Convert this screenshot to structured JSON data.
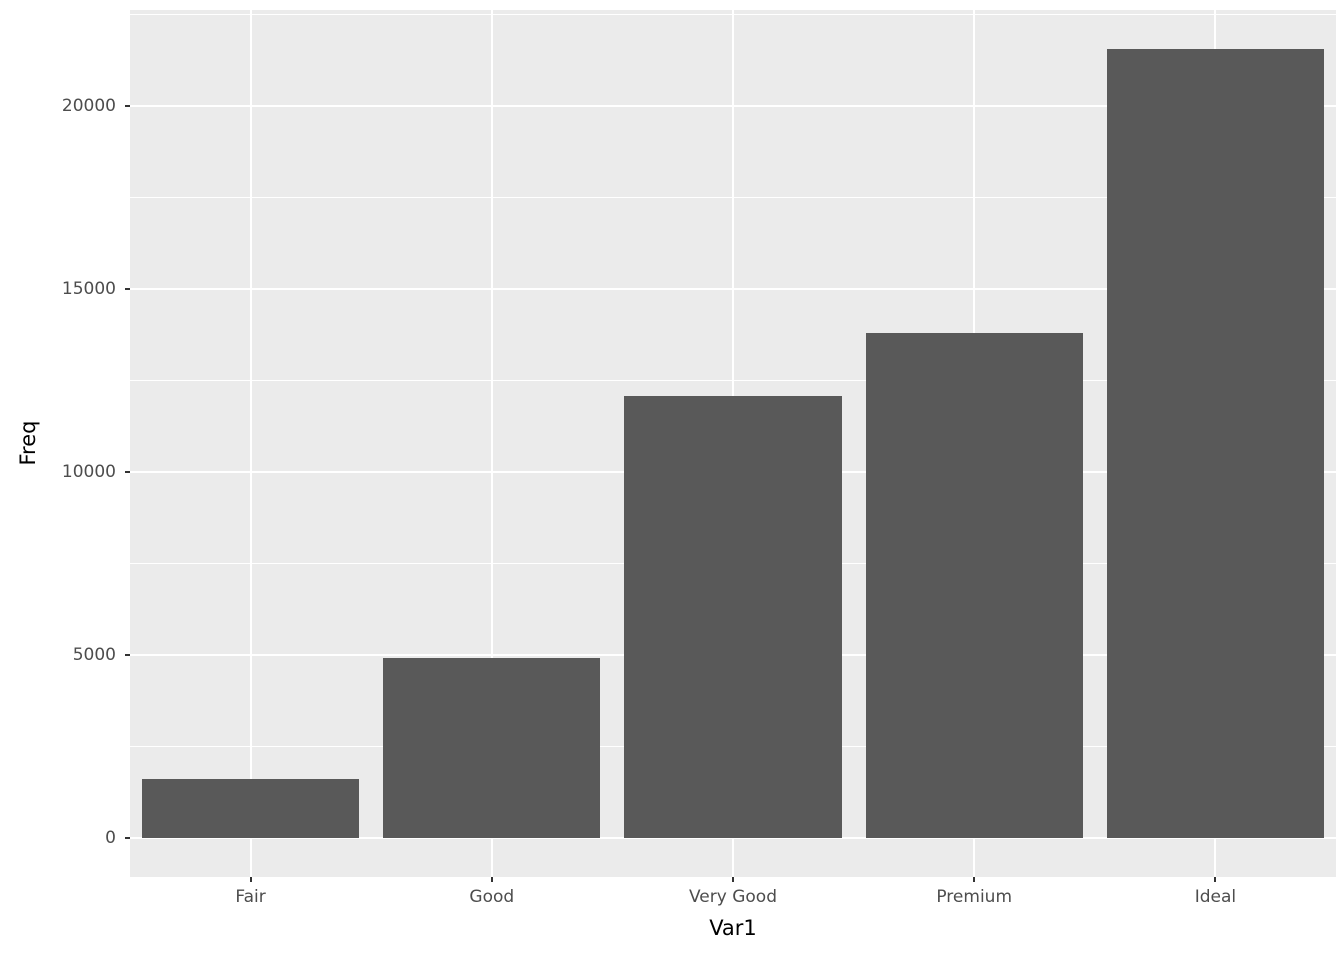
{
  "chart_data": {
    "type": "bar",
    "categories": [
      "Fair",
      "Good",
      "Very Good",
      "Premium",
      "Ideal"
    ],
    "values": [
      1610,
      4906,
      12082,
      13791,
      21551
    ],
    "title": "",
    "xlabel": "Var1",
    "ylabel": "Freq",
    "ylim": [
      -1078,
      22629
    ],
    "yticks": [
      0,
      5000,
      10000,
      15000,
      20000
    ],
    "ytick_labels": [
      "0",
      "5000",
      "10000",
      "15000",
      "20000"
    ],
    "yticks_minor": [
      2500,
      7500,
      12500,
      17500,
      22500
    ],
    "legend": "none",
    "grid": "on",
    "bar_width_fraction": 0.9,
    "colors": {
      "bar_fill": "#595959",
      "panel_background": "#EBEBEB",
      "gridline": "#FFFFFF",
      "tick_label": "#4D4D4D",
      "tick_mark": "#333333",
      "axis_title": "#000000",
      "figure_background": "#FFFFFF"
    }
  }
}
